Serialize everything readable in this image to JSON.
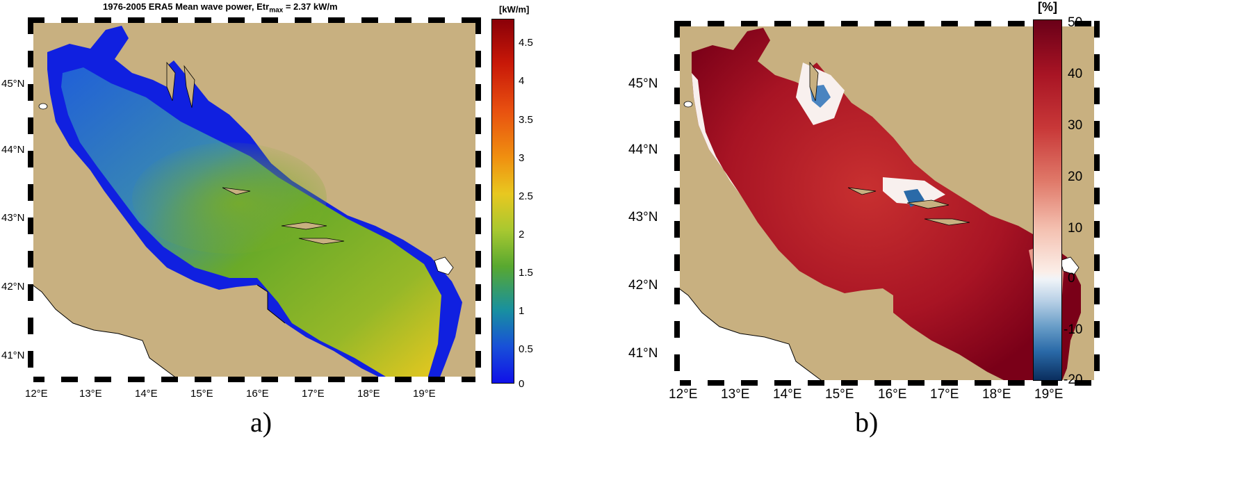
{
  "panel_a": {
    "title_main": "1976-2005 ERA5   Mean wave power, Etr",
    "title_sub": "max",
    "title_tail": " = 2.37 kW/m",
    "colorbar_unit": "[kW/m]",
    "colorbar_ticks": [
      "4.5",
      "4",
      "3.5",
      "3",
      "2.5",
      "2",
      "1.5",
      "1",
      "0.5",
      "0"
    ],
    "lat_labels": [
      "45°N",
      "44°N",
      "43°N",
      "42°N",
      "41°N"
    ],
    "lon_labels": [
      "12°E",
      "13°E",
      "14°E",
      "15°E",
      "16°E",
      "17°E",
      "18°E",
      "19°E"
    ],
    "caption": "a)",
    "colors": {
      "low": "#1020e0",
      "mid": "#6aaa28",
      "high": "#e8c820",
      "land": "#c8b080"
    }
  },
  "panel_b": {
    "colorbar_unit": "[%]",
    "colorbar_ticks": [
      "50",
      "40",
      "30",
      "20",
      "10",
      "0",
      "-10",
      "-20"
    ],
    "lat_labels": [
      "45°N",
      "44°N",
      "43°N",
      "42°N",
      "41°N"
    ],
    "lon_labels": [
      "12°E",
      "13°E",
      "14°E",
      "15°E",
      "16°E",
      "17°E",
      "18°E",
      "19°E"
    ],
    "caption": "b)",
    "colors": {
      "high": "#7a0018",
      "mid": "#d03838",
      "zero": "#f8f0ee",
      "neg": "#2a6aa8",
      "land": "#c8b080"
    }
  }
}
